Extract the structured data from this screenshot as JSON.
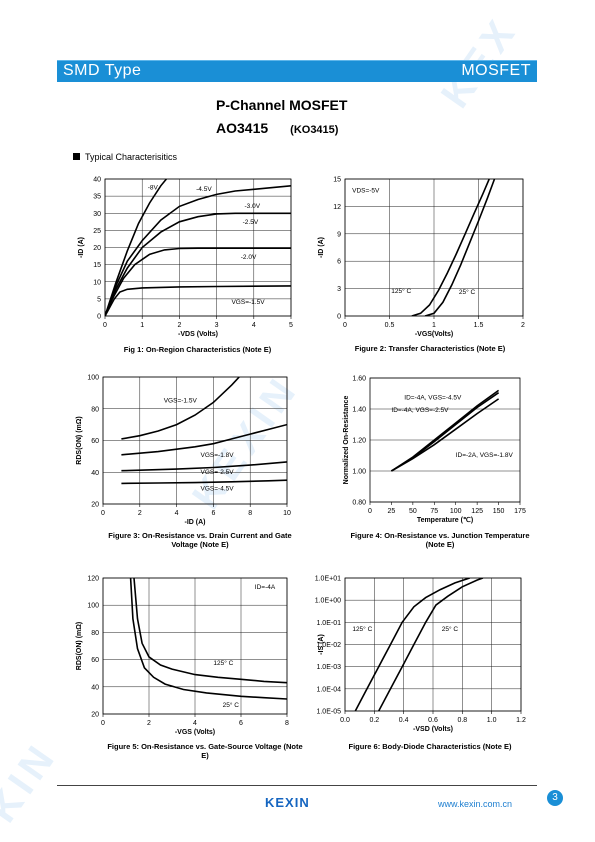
{
  "header": {
    "left": "SMD Type",
    "right": "MOSFET"
  },
  "title": {
    "line1": "P-Channel MOSFET",
    "part": "AO3415",
    "alt": "(KO3415)"
  },
  "section": "Typical  Characterisitics",
  "footer": {
    "logo": "KEXIN",
    "url": "www.kexin.com.cn",
    "page": "3"
  },
  "colors": {
    "accent": "#1a8fd6"
  },
  "chart_data": [
    {
      "id": "fig1",
      "type": "line",
      "caption": "Fig 1: On-Region Characteristics (Note E)",
      "xlabel": "-VDS (Volts)",
      "ylabel": "-ID (A)",
      "xlim": [
        0,
        5
      ],
      "ylim": [
        0,
        40
      ],
      "xticks": [
        0,
        1,
        2,
        3,
        4,
        5
      ],
      "yticks": [
        0,
        5,
        10,
        15,
        20,
        25,
        30,
        35,
        40
      ],
      "series": [
        {
          "name": "-8V",
          "points": [
            [
              0,
              0
            ],
            [
              0.3,
              10
            ],
            [
              0.6,
              19
            ],
            [
              0.9,
              27
            ],
            [
              1.2,
              33
            ],
            [
              1.5,
              38
            ],
            [
              1.65,
              40
            ]
          ]
        },
        {
          "name": "-4.5V",
          "points": [
            [
              0,
              0
            ],
            [
              0.3,
              9
            ],
            [
              0.6,
              16
            ],
            [
              1,
              22
            ],
            [
              1.5,
              28
            ],
            [
              2,
              32
            ],
            [
              2.5,
              34
            ],
            [
              3,
              35.5
            ],
            [
              3.5,
              36.5
            ],
            [
              4,
              37
            ],
            [
              4.5,
              37.5
            ],
            [
              5,
              38
            ]
          ]
        },
        {
          "name": "-3.0V",
          "points": [
            [
              0,
              0
            ],
            [
              0.3,
              8
            ],
            [
              0.6,
              14
            ],
            [
              1,
              20
            ],
            [
              1.5,
              24.5
            ],
            [
              2,
              27.5
            ],
            [
              2.5,
              29
            ],
            [
              3,
              29.8
            ],
            [
              3.5,
              30
            ],
            [
              5,
              30
            ]
          ]
        },
        {
          "name": "-2.5V",
          "points": [
            [
              0,
              0
            ],
            [
              0.2,
              5
            ],
            [
              0.5,
              11
            ],
            [
              0.8,
              15
            ],
            [
              1.2,
              18
            ],
            [
              1.6,
              19.3
            ],
            [
              2,
              19.7
            ],
            [
              2.5,
              19.8
            ],
            [
              5,
              19.8
            ]
          ]
        },
        {
          "name": "-2.0V",
          "points": [
            [
              0,
              0
            ],
            [
              0.1,
              2
            ],
            [
              0.25,
              5
            ],
            [
              0.4,
              7
            ],
            [
              0.6,
              7.8
            ],
            [
              1,
              8.2
            ],
            [
              2,
              8.5
            ],
            [
              3,
              8.6
            ],
            [
              5,
              8.8
            ]
          ]
        }
      ],
      "labels": [
        {
          "text": "-8V",
          "x": 1.15,
          "y": 37
        },
        {
          "text": "-4.5V",
          "x": 2.45,
          "y": 36.5
        },
        {
          "text": "-3.0V",
          "x": 3.75,
          "y": 31.5
        },
        {
          "text": "-2.5V",
          "x": 3.7,
          "y": 26.8
        },
        {
          "text": "-2.0V",
          "x": 3.65,
          "y": 16.6
        },
        {
          "text": "VGS=-1.5V",
          "x": 3.4,
          "y": 3.5
        }
      ]
    },
    {
      "id": "fig2",
      "type": "line",
      "caption": "Figure 2: Transfer Characteristics (Note E)",
      "xlabel": "-VGS(Volts)",
      "ylabel": "-ID (A)",
      "xlim": [
        0,
        2
      ],
      "ylim": [
        0,
        15
      ],
      "xticks": [
        0,
        0.5,
        1,
        1.5,
        2
      ],
      "yticks": [
        0,
        3,
        6,
        9,
        12,
        15
      ],
      "series": [
        {
          "name": "125°C",
          "points": [
            [
              0.75,
              0
            ],
            [
              0.85,
              0.3
            ],
            [
              0.95,
              1.2
            ],
            [
              1.05,
              2.8
            ],
            [
              1.15,
              4.7
            ],
            [
              1.25,
              6.8
            ],
            [
              1.35,
              9
            ],
            [
              1.45,
              11.2
            ],
            [
              1.55,
              13.4
            ],
            [
              1.62,
              15
            ]
          ]
        },
        {
          "name": "25°C",
          "points": [
            [
              0.9,
              0
            ],
            [
              1,
              0.3
            ],
            [
              1.1,
              1.5
            ],
            [
              1.2,
              3.4
            ],
            [
              1.3,
              5.6
            ],
            [
              1.4,
              8
            ],
            [
              1.5,
              10.4
            ],
            [
              1.6,
              12.9
            ],
            [
              1.68,
              15
            ]
          ]
        }
      ],
      "labels": [
        {
          "text": "VDS=-5V",
          "x": 0.08,
          "y": 13.5
        },
        {
          "text": "125° C",
          "x": 0.52,
          "y": 2.5
        },
        {
          "text": "25° C",
          "x": 1.28,
          "y": 2.4
        }
      ]
    },
    {
      "id": "fig3",
      "type": "line",
      "caption": "Figure 3: On-Resistance vs. Drain Current and Gate Voltage (Note E)",
      "xlabel": "-ID (A)",
      "ylabel": "RDS(ON) (mΩ)",
      "xlim": [
        0,
        10
      ],
      "ylim": [
        20,
        100
      ],
      "xticks": [
        0,
        2,
        4,
        6,
        8,
        10
      ],
      "yticks": [
        20,
        40,
        60,
        80,
        100
      ],
      "series": [
        {
          "name": "VGS=-1.5V",
          "points": [
            [
              1,
              61
            ],
            [
              2,
              63
            ],
            [
              3,
              66
            ],
            [
              4,
              70
            ],
            [
              5,
              76
            ],
            [
              6,
              84
            ],
            [
              7,
              95
            ],
            [
              7.4,
              100
            ]
          ]
        },
        {
          "name": "VGS=-1.8V",
          "points": [
            [
              1,
              51
            ],
            [
              2,
              52
            ],
            [
              3,
              53
            ],
            [
              4,
              54.5
            ],
            [
              5,
              56
            ],
            [
              6,
              58
            ],
            [
              7,
              61
            ],
            [
              8,
              64
            ],
            [
              9,
              67
            ],
            [
              10,
              70
            ]
          ]
        },
        {
          "name": "VGS=-2.5V",
          "points": [
            [
              1,
              41
            ],
            [
              2,
              41.3
            ],
            [
              4,
              42
            ],
            [
              6,
              43
            ],
            [
              8,
              44.5
            ],
            [
              10,
              46.5
            ]
          ]
        },
        {
          "name": "VGS=-4.5V",
          "points": [
            [
              1,
              33
            ],
            [
              3,
              33.2
            ],
            [
              5,
              33.5
            ],
            [
              7,
              34
            ],
            [
              9,
              34.6
            ],
            [
              10,
              35
            ]
          ]
        }
      ],
      "labels": [
        {
          "text": "VGS=-1.5V",
          "x": 3.3,
          "y": 84
        },
        {
          "text": "VGS=-1.8V",
          "x": 5.3,
          "y": 49.5
        },
        {
          "text": "VGS=-2.5V",
          "x": 5.3,
          "y": 39
        },
        {
          "text": "VGS=-4.5V",
          "x": 5.3,
          "y": 28.5
        }
      ]
    },
    {
      "id": "fig4",
      "type": "line",
      "caption": "Figure 4: On-Resistance vs. Junction Temperature (Note E)",
      "xlabel": "Temperature (℃)",
      "ylabel": "Normalized On-Resistance",
      "xlim": [
        0,
        175
      ],
      "ylim": [
        0.8,
        1.6
      ],
      "xticks": [
        0,
        25,
        50,
        75,
        100,
        125,
        150,
        175
      ],
      "yticks": [
        0.8,
        1.0,
        1.2,
        1.4,
        1.6
      ],
      "series": [
        {
          "name": "ID=-4A, VGS=-4.5V",
          "points": [
            [
              25,
              1
            ],
            [
              50,
              1.09
            ],
            [
              75,
              1.2
            ],
            [
              100,
              1.31
            ],
            [
              125,
              1.42
            ],
            [
              150,
              1.52
            ]
          ]
        },
        {
          "name": "ID=-4A, VGS=-2.5V",
          "points": [
            [
              25,
              1
            ],
            [
              50,
              1.085
            ],
            [
              75,
              1.19
            ],
            [
              100,
              1.3
            ],
            [
              125,
              1.41
            ],
            [
              150,
              1.505
            ]
          ]
        },
        {
          "name": "ID=-2A, VGS=-1.8V",
          "points": [
            [
              25,
              1
            ],
            [
              50,
              1.08
            ],
            [
              75,
              1.17
            ],
            [
              100,
              1.27
            ],
            [
              125,
              1.37
            ],
            [
              150,
              1.465
            ]
          ]
        }
      ],
      "labels": [
        {
          "text": "ID=-4A, VGS=-4.5V",
          "x": 40,
          "y": 1.46
        },
        {
          "text": "ID=-4A, VGS=-2.5V",
          "x": 25,
          "y": 1.38
        },
        {
          "text": "ID=-2A, VGS=-1.8V",
          "x": 100,
          "y": 1.09
        }
      ]
    },
    {
      "id": "fig5",
      "type": "line",
      "caption": "Figure 5: On-Resistance vs. Gate-Source Voltage (Note E)",
      "xlabel": "-VGS (Volts)",
      "ylabel": "RDS(ON) (mΩ)",
      "xlim": [
        0,
        8
      ],
      "ylim": [
        20,
        120
      ],
      "xticks": [
        0,
        2,
        4,
        6,
        8
      ],
      "yticks": [
        20,
        40,
        60,
        80,
        100,
        120
      ],
      "series": [
        {
          "name": "125°C",
          "points": [
            [
              1.35,
              120
            ],
            [
              1.5,
              90
            ],
            [
              1.7,
              72
            ],
            [
              2,
              62
            ],
            [
              2.5,
              56
            ],
            [
              3,
              53
            ],
            [
              4,
              49
            ],
            [
              5,
              47
            ],
            [
              6,
              45.5
            ],
            [
              7,
              44
            ],
            [
              8,
              43
            ]
          ]
        },
        {
          "name": "25°C",
          "points": [
            [
              1.2,
              120
            ],
            [
              1.3,
              90
            ],
            [
              1.5,
              68
            ],
            [
              1.8,
              54
            ],
            [
              2.2,
              47
            ],
            [
              2.7,
              42
            ],
            [
              3.5,
              38
            ],
            [
              4.5,
              35.5
            ],
            [
              6,
              33
            ],
            [
              7,
              32
            ],
            [
              8,
              31
            ]
          ]
        }
      ],
      "labels": [
        {
          "text": "ID=-4A",
          "x": 6.6,
          "y": 112
        },
        {
          "text": "125° C",
          "x": 4.8,
          "y": 56
        },
        {
          "text": "25° C",
          "x": 5.2,
          "y": 25
        }
      ]
    },
    {
      "id": "fig6",
      "type": "line",
      "caption": "Figure 6: Body-Diode Characteristics (Note E)",
      "xlabel": "-VSD (Volts)",
      "ylabel": "-IS (A)",
      "xlim": [
        0,
        1.2
      ],
      "ylim": [
        1e-05,
        10
      ],
      "yscale": "log",
      "xticks": [
        0.0,
        0.2,
        0.4,
        0.6,
        0.8,
        1.0,
        1.2
      ],
      "yticks": [
        "1.0E-05",
        "1.0E-04",
        "1.0E-03",
        "1.0E-02",
        "1.0E-01",
        "1.0E+00",
        "1.0E+01"
      ],
      "series": [
        {
          "name": "125°C",
          "points": [
            [
              0.07,
              1e-05
            ],
            [
              0.15,
              0.0001
            ],
            [
              0.23,
              0.001
            ],
            [
              0.31,
              0.01
            ],
            [
              0.39,
              0.1
            ],
            [
              0.47,
              0.5
            ],
            [
              0.55,
              1.3
            ],
            [
              0.65,
              3
            ],
            [
              0.75,
              6
            ],
            [
              0.85,
              10
            ]
          ]
        },
        {
          "name": "25°C",
          "points": [
            [
              0.23,
              1e-05
            ],
            [
              0.31,
              0.0001
            ],
            [
              0.39,
              0.001
            ],
            [
              0.47,
              0.01
            ],
            [
              0.55,
              0.1
            ],
            [
              0.62,
              0.6
            ],
            [
              0.7,
              1.5
            ],
            [
              0.8,
              4
            ],
            [
              0.9,
              8
            ],
            [
              0.94,
              10
            ]
          ]
        }
      ],
      "labels": [
        {
          "text": "125° C",
          "x": 0.05,
          "y": 0.04
        },
        {
          "text": "25° C",
          "x": 0.66,
          "y": 0.04
        }
      ]
    }
  ]
}
